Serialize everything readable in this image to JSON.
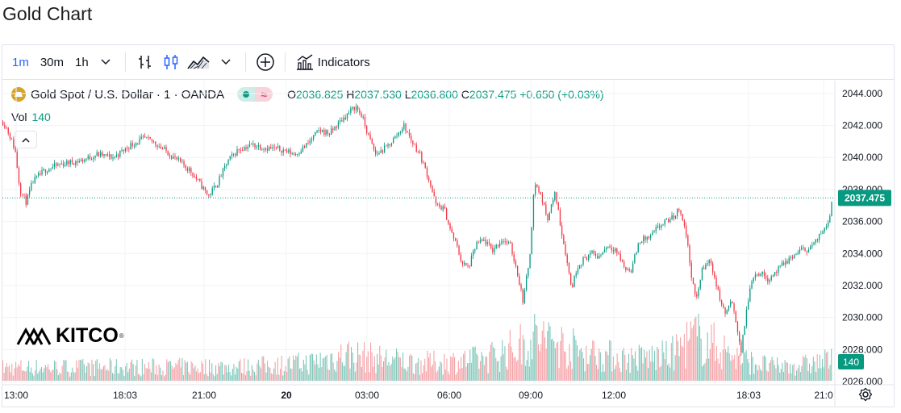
{
  "page": {
    "title": "Gold Chart"
  },
  "toolbar": {
    "intervals": [
      "1m",
      "30m",
      "1h"
    ],
    "active_interval": "1m",
    "indicators_label": "Indicators"
  },
  "legend": {
    "symbol": "Gold Spot / U.S. Dollar · 1 · OANDA",
    "open_label": "O",
    "open": "2036.825",
    "high_label": "H",
    "high": "2037.530",
    "low_label": "L",
    "low": "2036.800",
    "close_label": "C",
    "close": "2037.475",
    "change": "+0.650 (+0.03%)",
    "vol_label": "Vol",
    "vol": "140"
  },
  "logo": {
    "text": "KITCO",
    "reg": "®"
  },
  "colors": {
    "up": "#089981",
    "down": "#f23645",
    "vol_up": "#7ec8bb",
    "vol_down": "#f4a3a8",
    "accent": "#2962ff"
  },
  "chart_data": {
    "type": "candlestick",
    "price_axis": [
      "2044.000",
      "2042.000",
      "2040.000",
      "2038.000",
      "2036.000",
      "2034.000",
      "2032.000",
      "2030.000",
      "2028.000",
      "2026.000"
    ],
    "ylim": [
      2026,
      2044.8
    ],
    "time_axis": [
      "13:00",
      "18:03",
      "21:00",
      "20",
      "03:00",
      "06:00",
      "09:00",
      "12:00",
      "18:03",
      "21:0"
    ],
    "last_price": "2037.475",
    "last_volume": "140",
    "path": [
      [
        0,
        2042.5
      ],
      [
        8,
        2041.8
      ],
      [
        18,
        2040.5
      ],
      [
        24,
        2038.0
      ],
      [
        32,
        2037.2
      ],
      [
        40,
        2038.5
      ],
      [
        55,
        2039.2
      ],
      [
        75,
        2039.6
      ],
      [
        100,
        2039.8
      ],
      [
        120,
        2040.2
      ],
      [
        140,
        2040.0
      ],
      [
        162,
        2040.8
      ],
      [
        178,
        2041.2
      ],
      [
        192,
        2040.9
      ],
      [
        205,
        2040.4
      ],
      [
        220,
        2039.8
      ],
      [
        235,
        2039.2
      ],
      [
        248,
        2038.3
      ],
      [
        258,
        2037.6
      ],
      [
        270,
        2038.5
      ],
      [
        282,
        2039.8
      ],
      [
        295,
        2040.5
      ],
      [
        312,
        2040.8
      ],
      [
        330,
        2040.6
      ],
      [
        348,
        2040.5
      ],
      [
        365,
        2040.2
      ],
      [
        380,
        2040.8
      ],
      [
        395,
        2041.7
      ],
      [
        408,
        2041.5
      ],
      [
        420,
        2042.2
      ],
      [
        432,
        2042.8
      ],
      [
        440,
        2043.2
      ],
      [
        448,
        2042.6
      ],
      [
        455,
        2041.5
      ],
      [
        465,
        2040.2
      ],
      [
        478,
        2040.6
      ],
      [
        490,
        2041.3
      ],
      [
        500,
        2042.0
      ],
      [
        510,
        2041.0
      ],
      [
        520,
        2040.2
      ],
      [
        532,
        2038.5
      ],
      [
        540,
        2037.0
      ],
      [
        550,
        2036.8
      ],
      [
        558,
        2035.4
      ],
      [
        565,
        2034.6
      ],
      [
        572,
        2033.4
      ],
      [
        580,
        2033.1
      ],
      [
        590,
        2034.6
      ],
      [
        600,
        2034.8
      ],
      [
        610,
        2034.2
      ],
      [
        622,
        2034.9
      ],
      [
        632,
        2034.5
      ],
      [
        640,
        2033.0
      ],
      [
        648,
        2031.0
      ],
      [
        656,
        2033.8
      ],
      [
        662,
        2038.5
      ],
      [
        670,
        2037.6
      ],
      [
        678,
        2036.2
      ],
      [
        688,
        2037.8
      ],
      [
        695,
        2035.5
      ],
      [
        700,
        2034.2
      ],
      [
        708,
        2031.8
      ],
      [
        715,
        2033.2
      ],
      [
        722,
        2033.6
      ],
      [
        732,
        2034.0
      ],
      [
        742,
        2033.8
      ],
      [
        752,
        2034.5
      ],
      [
        762,
        2034.3
      ],
      [
        775,
        2033.0
      ],
      [
        782,
        2033.0
      ],
      [
        792,
        2034.8
      ],
      [
        805,
        2035.0
      ],
      [
        815,
        2035.6
      ],
      [
        825,
        2036.0
      ],
      [
        835,
        2036.3
      ],
      [
        842,
        2036.9
      ],
      [
        850,
        2035.2
      ],
      [
        857,
        2032.5
      ],
      [
        862,
        2031.0
      ],
      [
        870,
        2033.0
      ],
      [
        880,
        2033.6
      ],
      [
        890,
        2031.5
      ],
      [
        898,
        2030.2
      ],
      [
        906,
        2031.0
      ],
      [
        913,
        2029.5
      ],
      [
        918,
        2027.8
      ],
      [
        925,
        2030.5
      ],
      [
        932,
        2032.6
      ],
      [
        942,
        2032.8
      ],
      [
        952,
        2032.4
      ],
      [
        962,
        2032.9
      ],
      [
        972,
        2033.4
      ],
      [
        982,
        2033.8
      ],
      [
        992,
        2034.2
      ],
      [
        1002,
        2034.3
      ],
      [
        1012,
        2034.8
      ],
      [
        1020,
        2035.5
      ],
      [
        1028,
        2036.3
      ],
      [
        1031,
        2037.475
      ]
    ],
    "volume": {
      "ylim": [
        0,
        600
      ],
      "envelope": [
        [
          0,
          90
        ],
        [
          300,
          95
        ],
        [
          380,
          120
        ],
        [
          430,
          180
        ],
        [
          470,
          150
        ],
        [
          520,
          120
        ],
        [
          560,
          130
        ],
        [
          600,
          150
        ],
        [
          640,
          230
        ],
        [
          665,
          300
        ],
        [
          690,
          260
        ],
        [
          720,
          200
        ],
        [
          780,
          150
        ],
        [
          830,
          170
        ],
        [
          860,
          300
        ],
        [
          890,
          230
        ],
        [
          920,
          140
        ],
        [
          960,
          95
        ],
        [
          1000,
          110
        ],
        [
          1031,
          140
        ]
      ]
    }
  }
}
